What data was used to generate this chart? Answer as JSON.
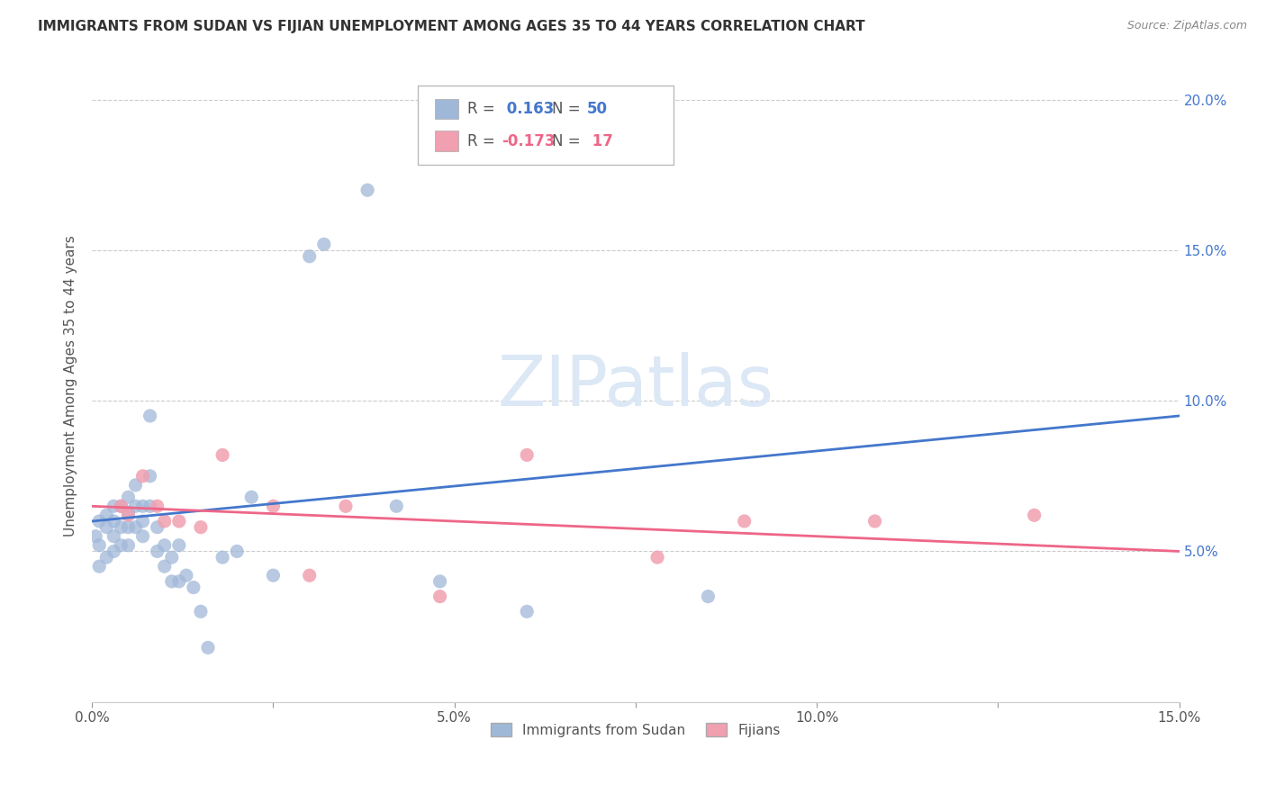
{
  "title": "IMMIGRANTS FROM SUDAN VS FIJIAN UNEMPLOYMENT AMONG AGES 35 TO 44 YEARS CORRELATION CHART",
  "source": "Source: ZipAtlas.com",
  "ylabel": "Unemployment Among Ages 35 to 44 years",
  "xlim": [
    0.0,
    0.15
  ],
  "ylim": [
    0.0,
    0.21
  ],
  "xtick_vals": [
    0.0,
    0.025,
    0.05,
    0.075,
    0.1,
    0.125,
    0.15
  ],
  "xtick_labels": [
    "0.0%",
    "",
    "5.0%",
    "",
    "10.0%",
    "",
    "15.0%"
  ],
  "ytick_vals": [
    0.0,
    0.05,
    0.1,
    0.15,
    0.2
  ],
  "ytick_labels": [
    "",
    "5.0%",
    "10.0%",
    "15.0%",
    "20.0%"
  ],
  "sudan_color": "#a0b8d8",
  "fijian_color": "#f0a0b0",
  "sudan_R": 0.163,
  "sudan_N": 50,
  "fijian_R": -0.173,
  "fijian_N": 17,
  "sudan_line_color": "#4477cc",
  "fijian_line_color": "#ee6688",
  "tick_color": "#4477cc",
  "sudan_x": [
    0.0005,
    0.001,
    0.001,
    0.001,
    0.002,
    0.002,
    0.002,
    0.003,
    0.003,
    0.003,
    0.003,
    0.004,
    0.004,
    0.004,
    0.005,
    0.005,
    0.005,
    0.005,
    0.006,
    0.006,
    0.006,
    0.007,
    0.007,
    0.007,
    0.008,
    0.008,
    0.008,
    0.009,
    0.009,
    0.01,
    0.01,
    0.011,
    0.011,
    0.012,
    0.012,
    0.013,
    0.014,
    0.015,
    0.016,
    0.018,
    0.02,
    0.022,
    0.025,
    0.03,
    0.032,
    0.038,
    0.042,
    0.048,
    0.06,
    0.085
  ],
  "sudan_y": [
    0.055,
    0.06,
    0.052,
    0.045,
    0.062,
    0.058,
    0.048,
    0.065,
    0.06,
    0.055,
    0.05,
    0.065,
    0.058,
    0.052,
    0.068,
    0.063,
    0.058,
    0.052,
    0.072,
    0.065,
    0.058,
    0.065,
    0.06,
    0.055,
    0.095,
    0.075,
    0.065,
    0.058,
    0.05,
    0.052,
    0.045,
    0.048,
    0.04,
    0.052,
    0.04,
    0.042,
    0.038,
    0.03,
    0.018,
    0.048,
    0.05,
    0.068,
    0.042,
    0.148,
    0.152,
    0.17,
    0.065,
    0.04,
    0.03,
    0.035
  ],
  "fijian_x": [
    0.004,
    0.005,
    0.007,
    0.009,
    0.01,
    0.012,
    0.015,
    0.018,
    0.025,
    0.03,
    0.035,
    0.048,
    0.06,
    0.078,
    0.09,
    0.108,
    0.13
  ],
  "fijian_y": [
    0.065,
    0.062,
    0.075,
    0.065,
    0.06,
    0.06,
    0.058,
    0.082,
    0.065,
    0.042,
    0.065,
    0.035,
    0.082,
    0.048,
    0.06,
    0.06,
    0.062
  ]
}
